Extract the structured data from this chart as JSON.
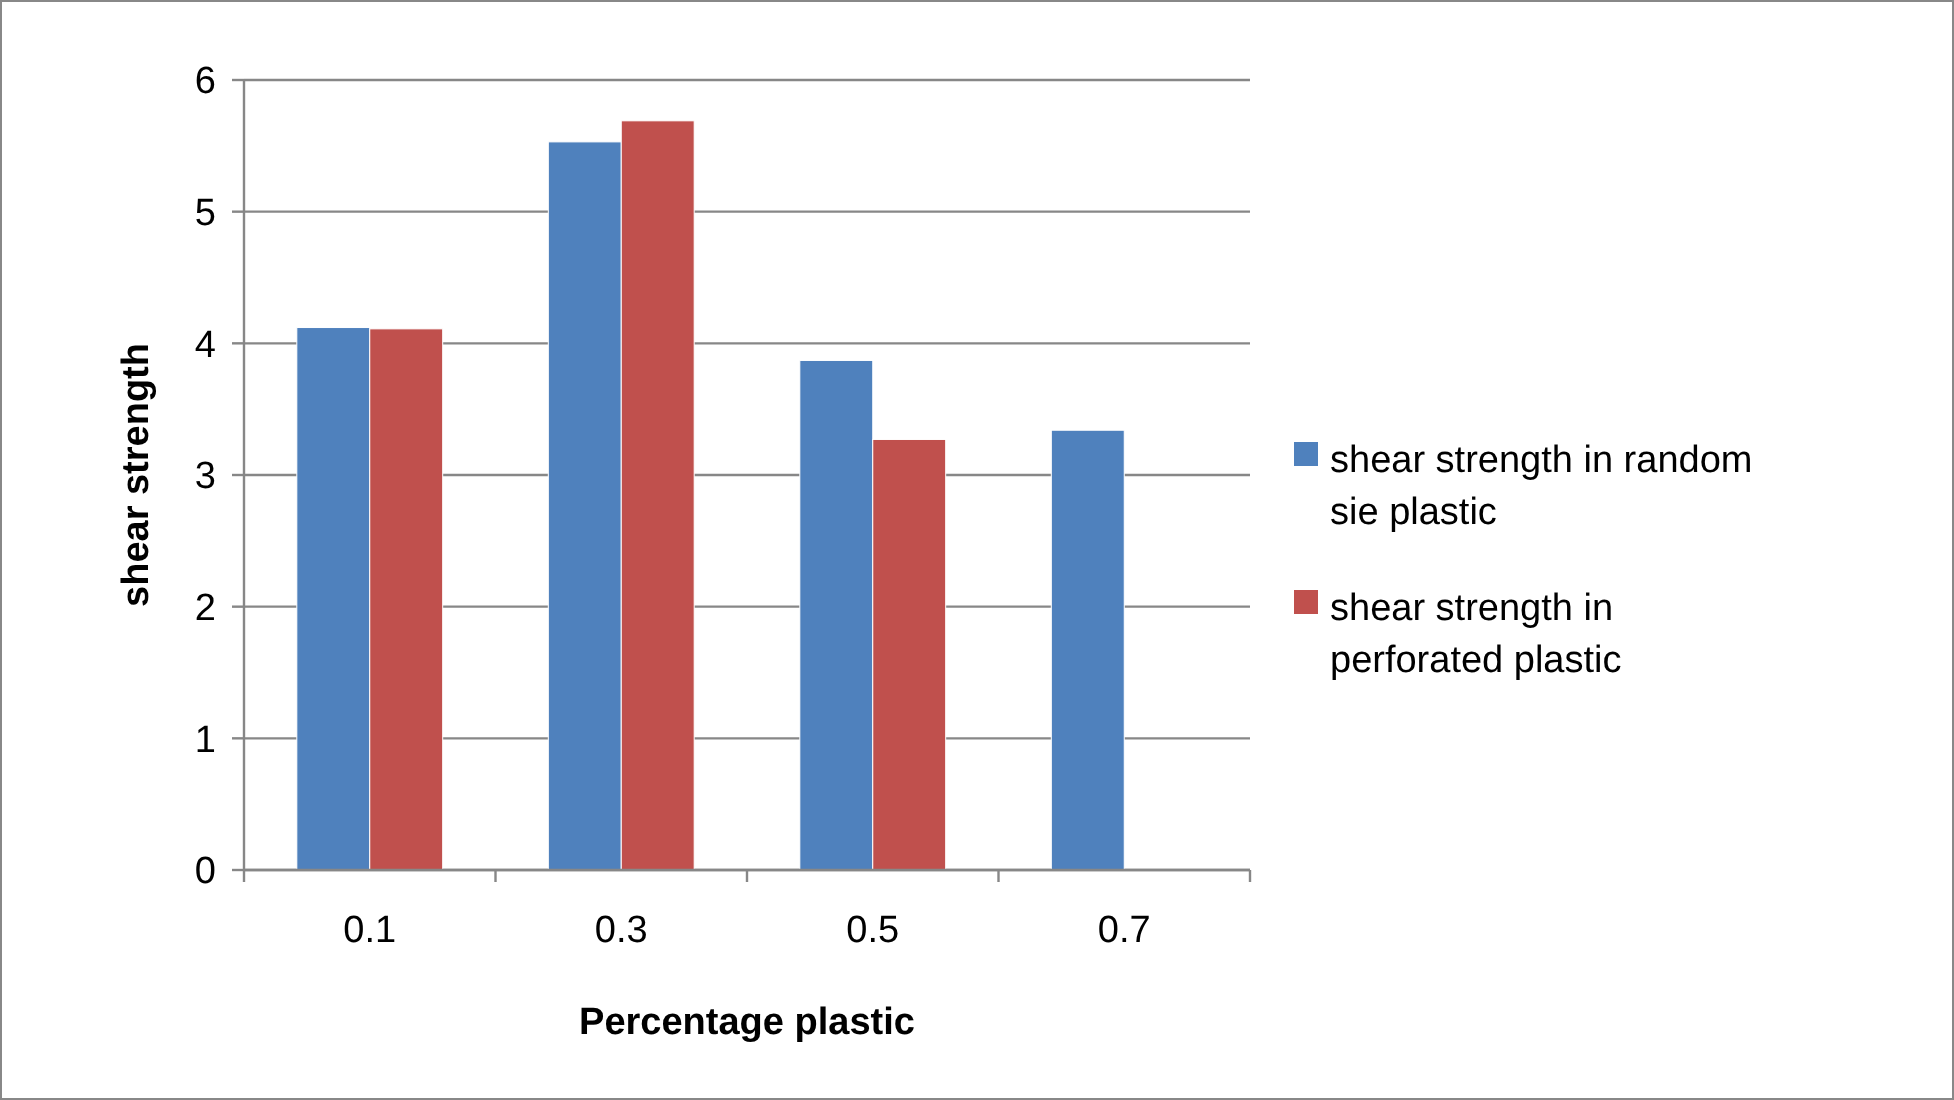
{
  "chart_data": {
    "type": "bar",
    "xlabel": "Percentage plastic",
    "ylabel": "shear strength",
    "categories": [
      "0.1",
      "0.3",
      "0.5",
      "0.7"
    ],
    "series": [
      {
        "name": "shear strength in random sie plastic",
        "color": "#4f81bd",
        "values": [
          4.12,
          5.53,
          3.87,
          3.34
        ]
      },
      {
        "name": "shear strength in perforated plastic",
        "color": "#c0504d",
        "values": [
          4.11,
          5.69,
          3.27,
          null
        ]
      }
    ],
    "ylim": [
      0,
      6
    ],
    "yticks": [
      0,
      1,
      2,
      3,
      4,
      5,
      6
    ],
    "grid": "y",
    "legend": "right"
  }
}
